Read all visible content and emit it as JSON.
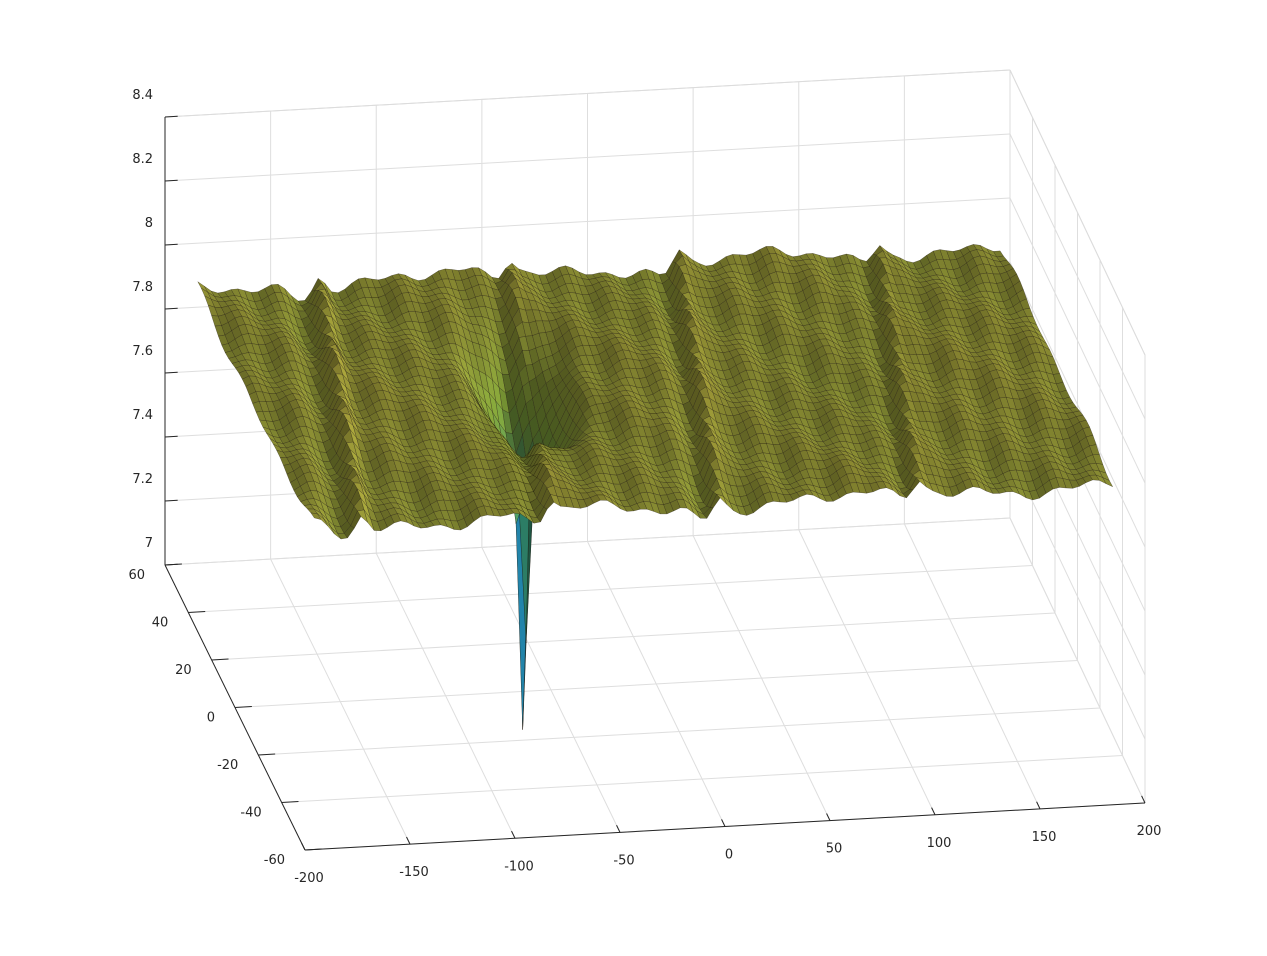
{
  "chart_data": {
    "type": "surface",
    "title": "",
    "xlabel": "",
    "ylabel": "",
    "zlabel": "",
    "xlim": [
      -200,
      200
    ],
    "ylim": [
      -60,
      60
    ],
    "zlim": [
      7,
      8.4
    ],
    "grid": true,
    "colormap": "parula",
    "x_ticks": [
      -200,
      -150,
      -100,
      -50,
      0,
      50,
      100,
      150,
      200
    ],
    "x_tick_labels": [
      "-200",
      "-150",
      "-100",
      "-50",
      "0",
      "50",
      "100",
      "150",
      "200"
    ],
    "y_ticks": [
      -60,
      -40,
      -20,
      0,
      20,
      40,
      60
    ],
    "y_tick_labels": [
      "-60",
      "-40",
      "-20",
      "0",
      "20",
      "40",
      "60"
    ],
    "z_ticks": [
      7,
      7.2,
      7.4,
      7.6,
      7.8,
      8,
      8.2,
      8.4
    ],
    "z_tick_labels": [
      "7",
      "7.2",
      "7.4",
      "7.6",
      "7.8",
      "8",
      "8.2",
      "8.4"
    ],
    "surface_extent": {
      "x": [
        -190,
        190
      ],
      "y": [
        -50,
        50
      ]
    },
    "baseline_z": 7.93,
    "crest_lines_x": [
      -150,
      -60,
      20,
      115
    ],
    "spike": {
      "x": -60,
      "y": 5,
      "min_z": 6.75
    },
    "colors": {
      "low": "#3e26a8",
      "mid": "#2db7a7",
      "high": "#e8c64a",
      "surface_tint": "#8a7a3a"
    }
  }
}
